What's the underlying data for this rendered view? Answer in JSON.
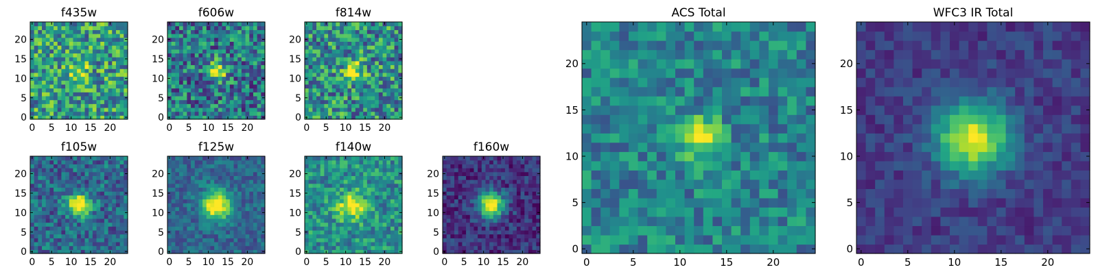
{
  "colors": {
    "colormap": "viridis",
    "frame": "#000000",
    "background": "#ffffff"
  },
  "chart_data": [
    {
      "type": "heatmap",
      "title": "f435w",
      "grid_size": 25,
      "colormap": "viridis",
      "xlim": [
        0,
        24
      ],
      "ylim": [
        0,
        24
      ],
      "xticks": [
        "0",
        "5",
        "10",
        "15",
        "20"
      ],
      "yticks": [
        "0",
        "5",
        "10",
        "15",
        "20"
      ],
      "source": {
        "center": [
          12,
          12
        ],
        "peak": 0.45,
        "width": 1.6
      },
      "background_level": 0.55,
      "noise_amplitude": 0.33,
      "grid": false
    },
    {
      "type": "heatmap",
      "title": "f606w",
      "grid_size": 25,
      "colormap": "viridis",
      "xlim": [
        0,
        24
      ],
      "ylim": [
        0,
        24
      ],
      "xticks": [
        "0",
        "5",
        "10",
        "15",
        "20"
      ],
      "yticks": [
        "0",
        "5",
        "10",
        "15",
        "20"
      ],
      "source": {
        "center": [
          12,
          12
        ],
        "peak": 0.7,
        "width": 1.6
      },
      "background_level": 0.4,
      "noise_amplitude": 0.32,
      "grid": false
    },
    {
      "type": "heatmap",
      "title": "f814w",
      "grid_size": 25,
      "colormap": "viridis",
      "xlim": [
        0,
        24
      ],
      "ylim": [
        0,
        24
      ],
      "xticks": [
        "0",
        "5",
        "10",
        "15",
        "20"
      ],
      "yticks": [
        "0",
        "5",
        "10",
        "15",
        "20"
      ],
      "source": {
        "center": [
          12,
          12
        ],
        "peak": 0.55,
        "width": 1.6
      },
      "background_level": 0.5,
      "noise_amplitude": 0.33,
      "grid": false
    },
    {
      "type": "heatmap",
      "title": "f105w",
      "grid_size": 25,
      "colormap": "viridis",
      "xlim": [
        0,
        24
      ],
      "ylim": [
        0,
        24
      ],
      "xticks": [
        "0",
        "5",
        "10",
        "15",
        "20"
      ],
      "yticks": [
        "0",
        "5",
        "10",
        "15",
        "20"
      ],
      "source": {
        "center": [
          12,
          12
        ],
        "peak": 0.75,
        "width": 2.0
      },
      "background_level": 0.35,
      "noise_amplitude": 0.22,
      "grid": false
    },
    {
      "type": "heatmap",
      "title": "f125w",
      "grid_size": 25,
      "colormap": "viridis",
      "xlim": [
        0,
        24
      ],
      "ylim": [
        0,
        24
      ],
      "xticks": [
        "0",
        "5",
        "10",
        "15",
        "20"
      ],
      "yticks": [
        "0",
        "5",
        "10",
        "15",
        "20"
      ],
      "source": {
        "center": [
          12,
          12
        ],
        "peak": 0.8,
        "width": 2.6
      },
      "background_level": 0.33,
      "noise_amplitude": 0.15,
      "grid": false
    },
    {
      "type": "heatmap",
      "title": "f140w",
      "grid_size": 25,
      "colormap": "viridis",
      "xlim": [
        0,
        24
      ],
      "ylim": [
        0,
        24
      ],
      "xticks": [
        "0",
        "5",
        "10",
        "15",
        "20"
      ],
      "yticks": [
        "0",
        "5",
        "10",
        "15",
        "20"
      ],
      "source": {
        "center": [
          11.5,
          11.5
        ],
        "peak": 0.55,
        "width": 2.4
      },
      "background_level": 0.5,
      "noise_amplitude": 0.22,
      "grid": false
    },
    {
      "type": "heatmap",
      "title": "f160w",
      "grid_size": 25,
      "colormap": "viridis",
      "xlim": [
        0,
        24
      ],
      "ylim": [
        0,
        24
      ],
      "xticks": [
        "0",
        "5",
        "10",
        "15",
        "20"
      ],
      "yticks": [
        "0",
        "5",
        "10",
        "15",
        "20"
      ],
      "source": {
        "center": [
          12,
          12
        ],
        "peak": 0.85,
        "width": 2.4
      },
      "background_level": 0.15,
      "noise_amplitude": 0.15,
      "grid": false
    },
    {
      "type": "heatmap",
      "title": "ACS Total",
      "grid_size": 25,
      "colormap": "viridis",
      "xlim": [
        0,
        24
      ],
      "ylim": [
        0,
        24
      ],
      "xticks": [
        "0",
        "5",
        "10",
        "15",
        "20"
      ],
      "yticks": [
        "0",
        "5",
        "10",
        "15",
        "20"
      ],
      "source": {
        "center": [
          12,
          12
        ],
        "peak": 0.55,
        "width": 1.6
      },
      "background_level": 0.45,
      "noise_amplitude": 0.2,
      "grid": false
    },
    {
      "type": "heatmap",
      "title": "WFC3 IR Total",
      "grid_size": 25,
      "colormap": "viridis",
      "xlim": [
        0,
        24
      ],
      "ylim": [
        0,
        24
      ],
      "xticks": [
        "0",
        "5",
        "10",
        "15",
        "20"
      ],
      "yticks": [
        "0",
        "5",
        "10",
        "15",
        "20"
      ],
      "source": {
        "center": [
          12,
          12
        ],
        "peak": 0.8,
        "width": 2.8
      },
      "background_level": 0.18,
      "noise_amplitude": 0.1,
      "grid": false
    }
  ]
}
